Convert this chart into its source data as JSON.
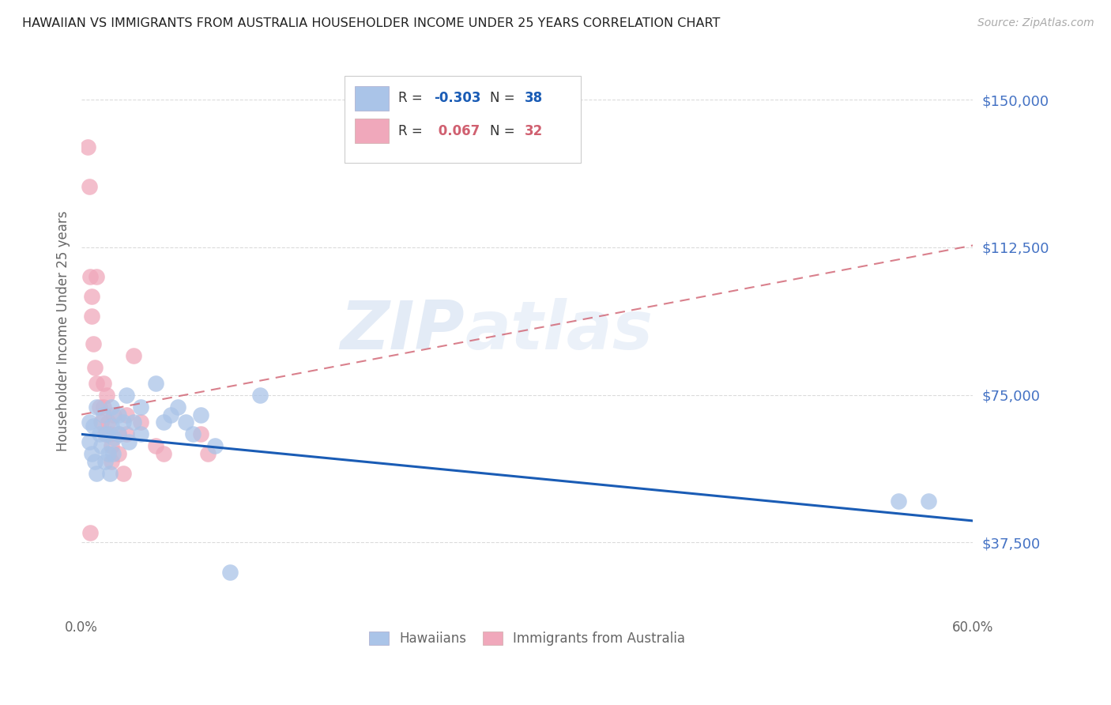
{
  "title": "HAWAIIAN VS IMMIGRANTS FROM AUSTRALIA HOUSEHOLDER INCOME UNDER 25 YEARS CORRELATION CHART",
  "source": "Source: ZipAtlas.com",
  "ylabel": "Householder Income Under 25 years",
  "xlim": [
    0.0,
    0.6
  ],
  "ylim": [
    20000,
    162500
  ],
  "yticks": [
    37500,
    75000,
    112500,
    150000
  ],
  "ytick_labels": [
    "$37,500",
    "$75,000",
    "$112,500",
    "$150,000"
  ],
  "xticks": [
    0.0,
    0.1,
    0.2,
    0.3,
    0.4,
    0.5,
    0.6
  ],
  "xtick_labels": [
    "0.0%",
    "",
    "",
    "",
    "",
    "",
    "60.0%"
  ],
  "background_color": "#ffffff",
  "grid_color": "#d8d8d8",
  "hawaiians_color": "#aac4e8",
  "australia_color": "#f0a8bb",
  "blue_line_color": "#1a5cb5",
  "pink_line_color": "#d06070",
  "legend_R_blue": "-0.303",
  "legend_N_blue": "38",
  "legend_R_pink": "0.067",
  "legend_N_pink": "32",
  "watermark_zip": "ZIP",
  "watermark_atlas": "atlas",
  "title_color": "#222222",
  "axis_color": "#666666",
  "ytick_color": "#4472c4",
  "hawaiians_x": [
    0.005,
    0.005,
    0.007,
    0.008,
    0.009,
    0.01,
    0.01,
    0.012,
    0.013,
    0.015,
    0.016,
    0.017,
    0.018,
    0.019,
    0.02,
    0.02,
    0.021,
    0.022,
    0.025,
    0.025,
    0.028,
    0.03,
    0.032,
    0.035,
    0.04,
    0.04,
    0.05,
    0.055,
    0.06,
    0.065,
    0.07,
    0.075,
    0.08,
    0.09,
    0.1,
    0.12,
    0.55,
    0.57
  ],
  "hawaiians_y": [
    68000,
    63000,
    60000,
    67000,
    58000,
    72000,
    55000,
    65000,
    62000,
    70000,
    58000,
    65000,
    60000,
    55000,
    67000,
    72000,
    60000,
    64000,
    70000,
    65000,
    68000,
    75000,
    63000,
    68000,
    72000,
    65000,
    78000,
    68000,
    70000,
    72000,
    68000,
    65000,
    70000,
    62000,
    30000,
    75000,
    48000,
    48000
  ],
  "australia_x": [
    0.004,
    0.005,
    0.006,
    0.007,
    0.007,
    0.008,
    0.009,
    0.01,
    0.01,
    0.012,
    0.013,
    0.015,
    0.015,
    0.016,
    0.017,
    0.018,
    0.019,
    0.02,
    0.02,
    0.022,
    0.025,
    0.025,
    0.028,
    0.03,
    0.03,
    0.035,
    0.04,
    0.05,
    0.055,
    0.08,
    0.085,
    0.006
  ],
  "australia_y": [
    138000,
    128000,
    105000,
    100000,
    95000,
    88000,
    82000,
    78000,
    105000,
    72000,
    68000,
    78000,
    72000,
    65000,
    75000,
    68000,
    65000,
    62000,
    58000,
    70000,
    65000,
    60000,
    55000,
    70000,
    65000,
    85000,
    68000,
    62000,
    60000,
    65000,
    60000,
    40000
  ],
  "blue_line_x": [
    0.0,
    0.6
  ],
  "blue_line_y": [
    65000,
    43000
  ],
  "pink_line_x": [
    0.0,
    0.6
  ],
  "pink_line_y": [
    70000,
    113000
  ]
}
